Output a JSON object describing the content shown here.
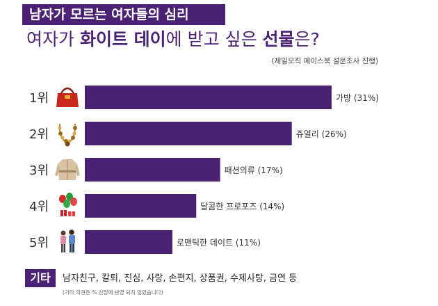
{
  "header": {
    "label": "남자가 모르는 여자들의 심리",
    "title_part1": "여자가 ",
    "title_part2": "화이트 데이",
    "title_part3": "에 받고 싶은 ",
    "title_part4": "선물",
    "title_part5": "은?",
    "subtitle": "(제일모직 페이스북 설문조사 진행)"
  },
  "colors": {
    "bar": "#4b2173",
    "header_bg": "#4b2173"
  },
  "chart_data": {
    "type": "bar",
    "orientation": "horizontal",
    "categories": [
      "가방",
      "쥬얼리",
      "패션의류",
      "달콤한 프로포즈",
      "로맨틱한 데이트"
    ],
    "ranks": [
      "1위",
      "2위",
      "3위",
      "4위",
      "5위"
    ],
    "values": [
      31,
      26,
      17,
      14,
      11
    ],
    "value_labels": [
      "가방 (31%)",
      "쥬얼리 (26%)",
      "패션의류 (17%)",
      "달콤한 프로포즈 (14%)",
      "로맨틱한 데이트 (11%)"
    ],
    "icons": [
      "handbag-icon",
      "necklace-icon",
      "coat-icon",
      "balloons-gifts-icon",
      "couple-icon"
    ]
  },
  "footer": {
    "badge": "기타",
    "items": "남자친구, 칼퇴, 진심, 사랑, 손편지, 상품권, 수제사탕, 금연 등",
    "note": "(기타 의견은 % 산정에 반영 되지 않았습니다)"
  }
}
